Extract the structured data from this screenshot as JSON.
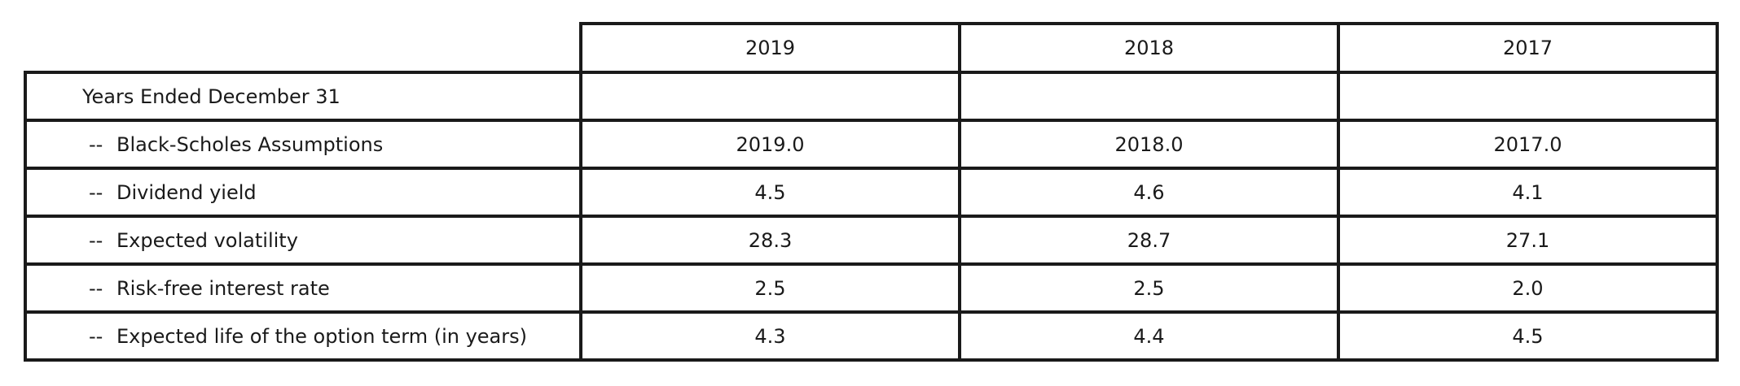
{
  "table": {
    "columns": [
      "2019",
      "2018",
      "2017"
    ],
    "rows": [
      {
        "label": "Years Ended December 31",
        "prefix": "",
        "values": [
          "",
          "",
          ""
        ]
      },
      {
        "label": "Black-Scholes Assumptions",
        "prefix": "--",
        "values": [
          "2019.0",
          "2018.0",
          "2017.0"
        ]
      },
      {
        "label": "Dividend yield",
        "prefix": "--",
        "values": [
          "4.5",
          "4.6",
          "4.1"
        ]
      },
      {
        "label": "Expected volatility",
        "prefix": "--",
        "values": [
          "28.3",
          "28.7",
          "27.1"
        ]
      },
      {
        "label": "Risk-free interest rate",
        "prefix": "--",
        "values": [
          "2.5",
          "2.5",
          "2.0"
        ]
      },
      {
        "label": "Expected life of the option term (in years)",
        "prefix": "--",
        "values": [
          "4.3",
          "4.4",
          "4.5"
        ]
      }
    ]
  }
}
